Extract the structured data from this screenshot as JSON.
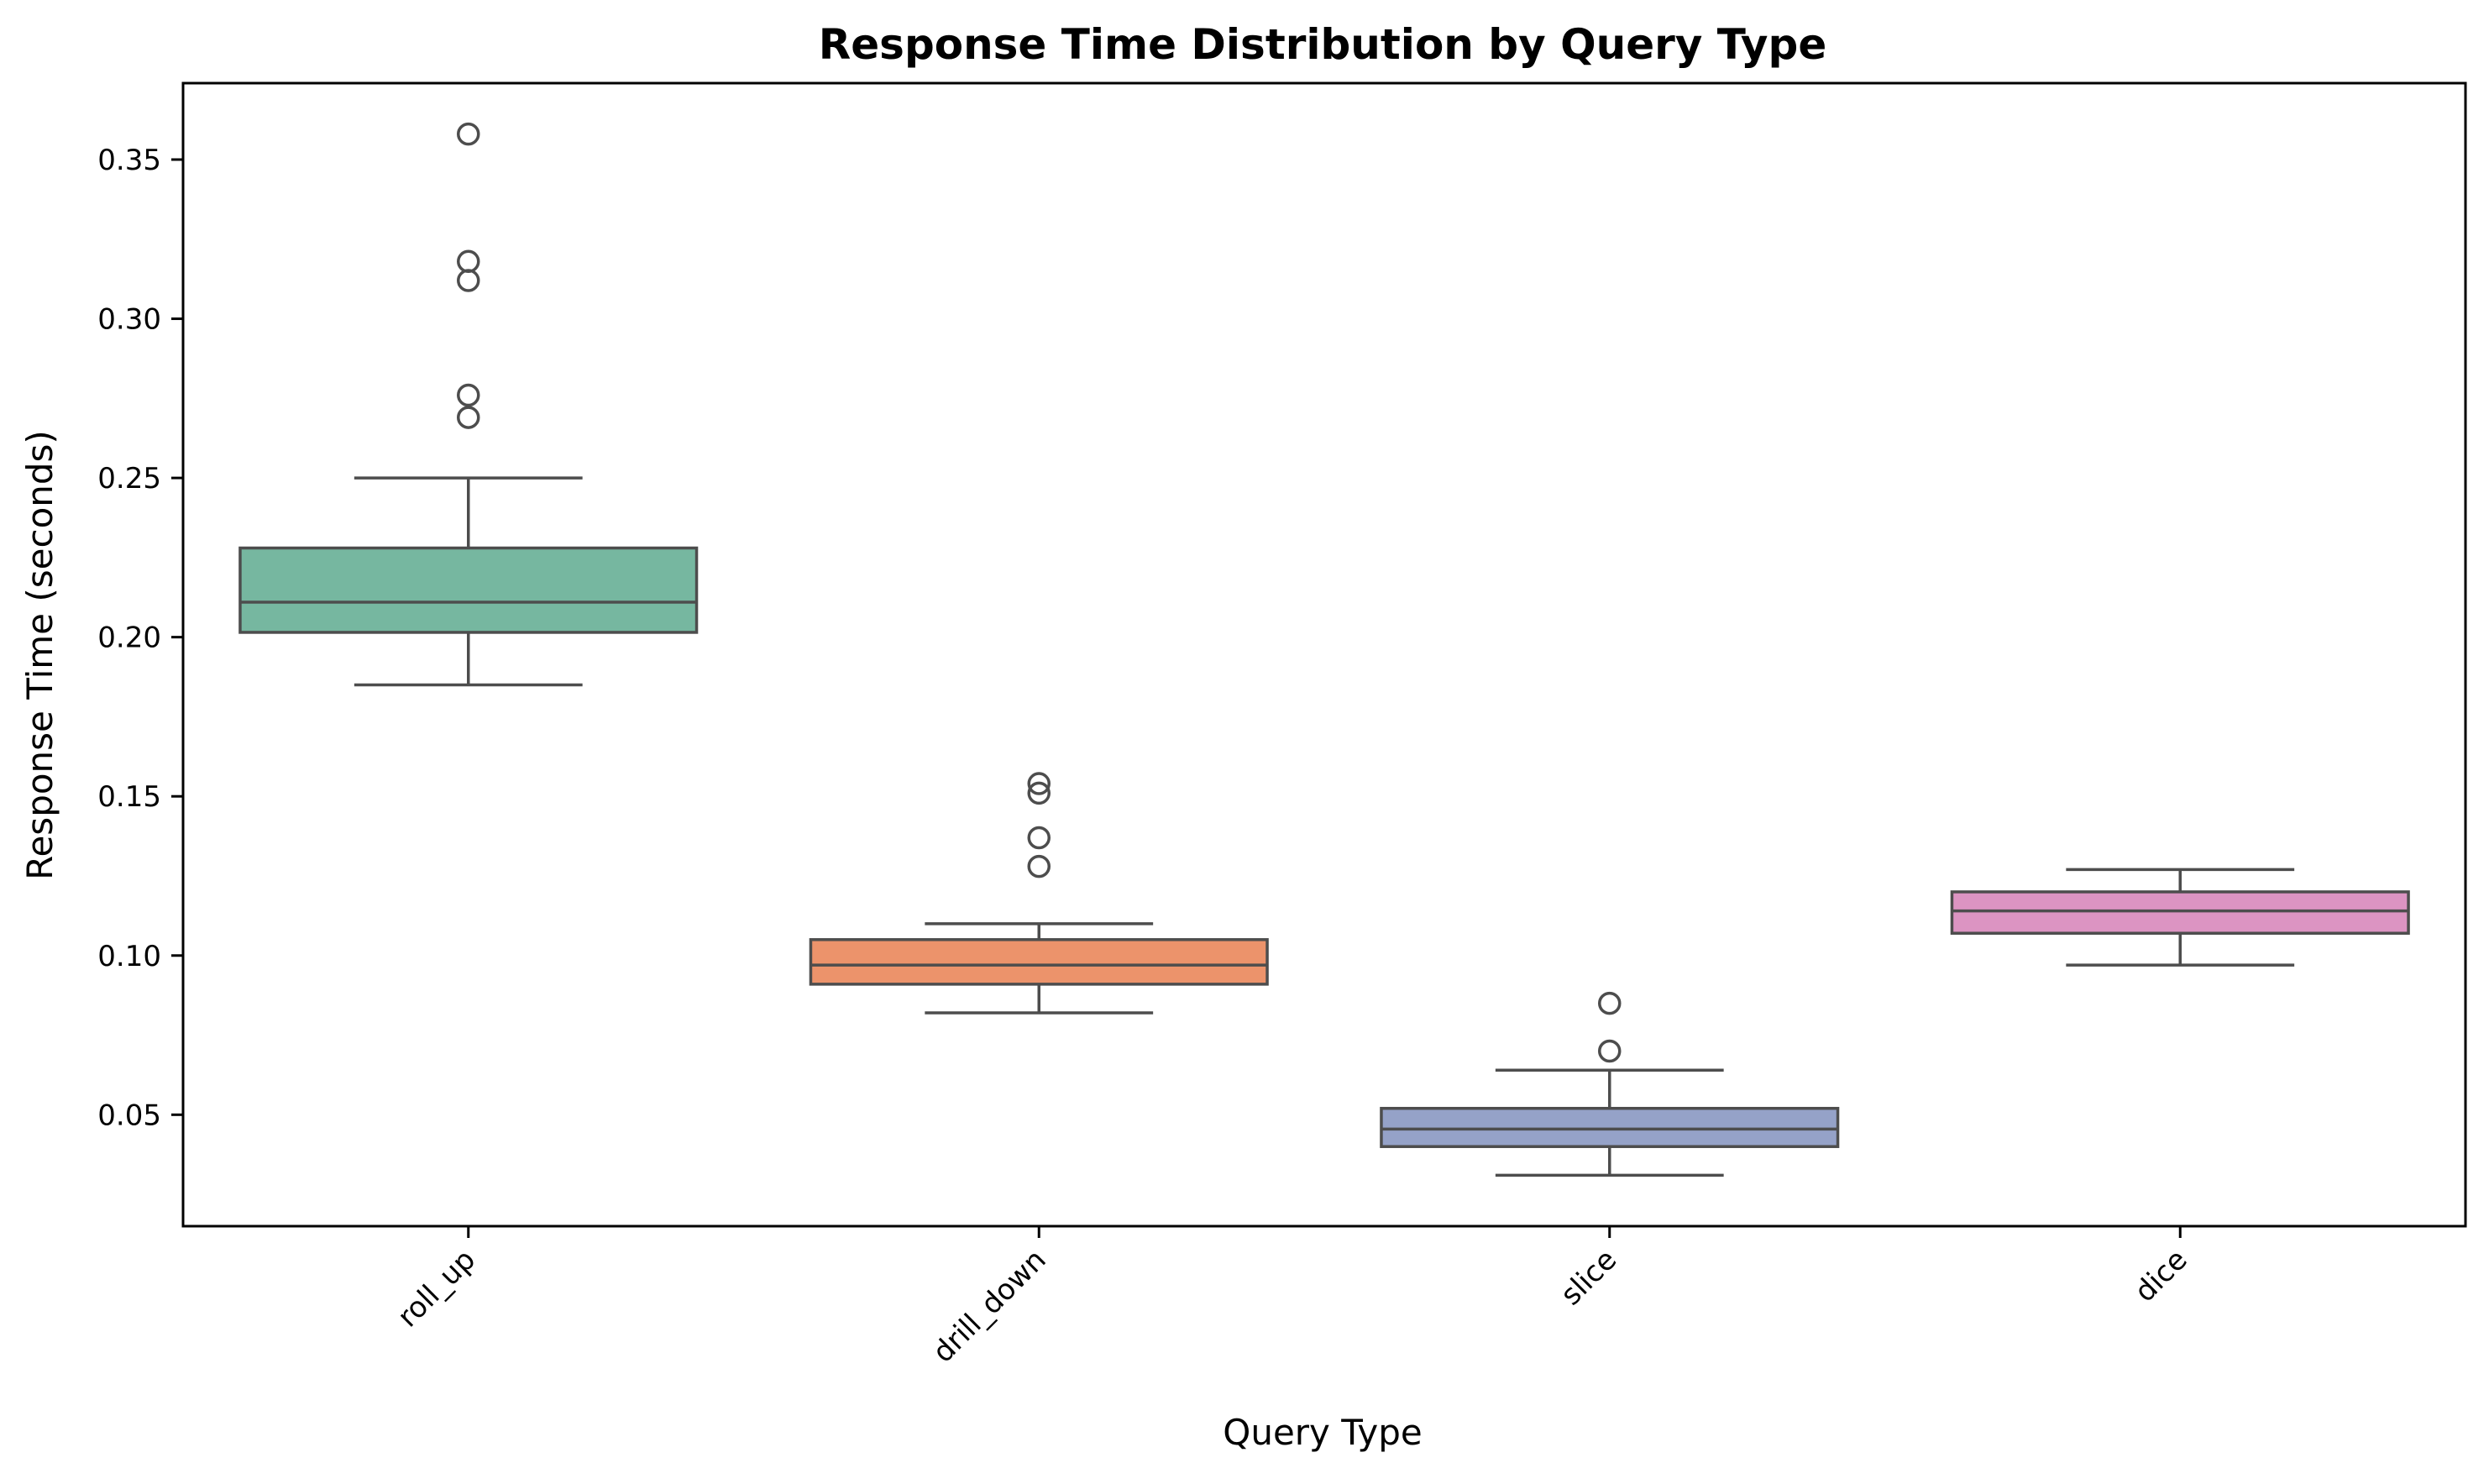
{
  "chart_data": {
    "type": "box",
    "title": "Response Time Distribution by Query Type",
    "xlabel": "Query Type",
    "ylabel": "Response Time (seconds)",
    "ylim": [
      0.015,
      0.374
    ],
    "yticks": [
      0.05,
      0.1,
      0.15,
      0.2,
      0.25,
      0.3,
      0.35
    ],
    "ytick_labels": [
      "0.05",
      "0.10",
      "0.15",
      "0.20",
      "0.25",
      "0.30",
      "0.35"
    ],
    "categories": [
      "roll_up",
      "drill_down",
      "slice",
      "dice"
    ],
    "grid": false,
    "legend": "none",
    "colors": {
      "roll_up": "#76b7a0",
      "drill_down": "#ec936b",
      "slice": "#95a2c8",
      "dice": "#dc94c2",
      "line": "#4d4d4d",
      "axis": "#000000"
    },
    "boxes": [
      {
        "category": "roll_up",
        "whisker_low": 0.185,
        "q1": 0.2015,
        "median": 0.211,
        "q3": 0.228,
        "whisker_high": 0.25,
        "outliers": [
          0.358,
          0.318,
          0.312,
          0.276,
          0.269
        ]
      },
      {
        "category": "drill_down",
        "whisker_low": 0.082,
        "q1": 0.091,
        "median": 0.097,
        "q3": 0.105,
        "whisker_high": 0.11,
        "outliers": [
          0.154,
          0.151,
          0.137,
          0.128
        ]
      },
      {
        "category": "slice",
        "whisker_low": 0.031,
        "q1": 0.04,
        "median": 0.0455,
        "q3": 0.052,
        "whisker_high": 0.064,
        "outliers": [
          0.085,
          0.07
        ]
      },
      {
        "category": "dice",
        "whisker_low": 0.097,
        "q1": 0.107,
        "median": 0.114,
        "q3": 0.12,
        "whisker_high": 0.127,
        "outliers": []
      }
    ]
  }
}
